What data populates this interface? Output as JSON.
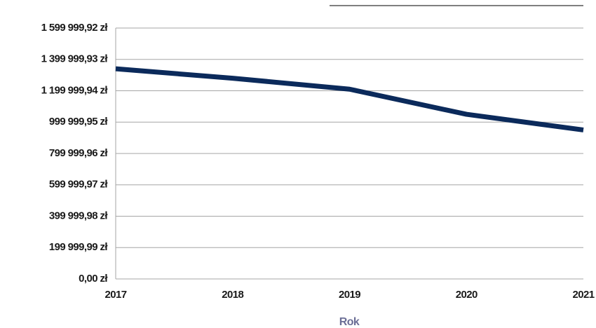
{
  "chart_data": {
    "type": "line",
    "x_label": "Rok",
    "x": [
      2017,
      2018,
      2019,
      2020,
      2021
    ],
    "xlim": [
      2017,
      2021
    ],
    "xticks": [
      2017,
      2018,
      2019,
      2020,
      2021
    ],
    "series": [
      {
        "color": "#0b2a5b",
        "values": [
          1340000,
          1280000,
          1210000,
          1050000,
          950000
        ]
      }
    ],
    "ylim": [
      0,
      1599999.92
    ],
    "yticks": [
      {
        "value": 0,
        "label": "0,00 zł"
      },
      {
        "value": 199999.99,
        "label": "199 999,99 zł"
      },
      {
        "value": 399999.98,
        "label": "399 999,98 zł"
      },
      {
        "value": 599999.97,
        "label": "599 999,97 zł"
      },
      {
        "value": 799999.96,
        "label": "799 999,96 zł"
      },
      {
        "value": 999999.95,
        "label": "999 999,95 zł"
      },
      {
        "value": 1199999.94,
        "label": "1 199 999,94 zł"
      },
      {
        "value": 1399999.93,
        "label": "1 399 999,93 zł"
      },
      {
        "value": 1599999.92,
        "label": "1 599 999,92 zł"
      }
    ],
    "grid": true
  }
}
